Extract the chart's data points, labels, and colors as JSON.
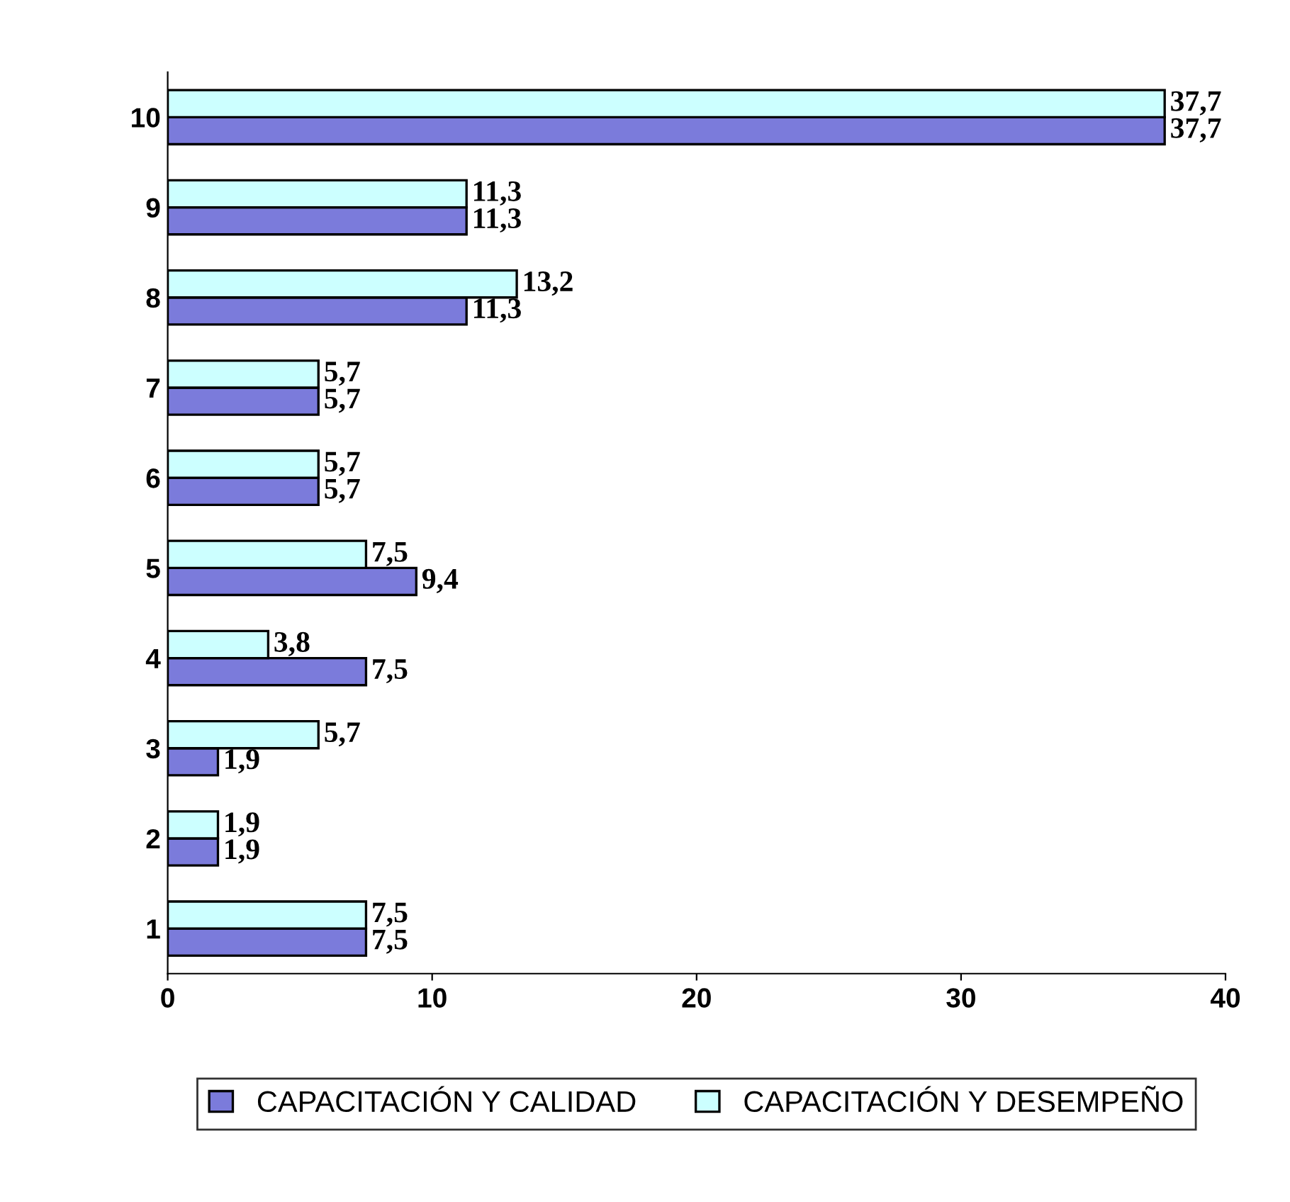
{
  "chart_data": {
    "type": "bar",
    "orientation": "horizontal",
    "categories": [
      "10",
      "9",
      "8",
      "7",
      "6",
      "5",
      "4",
      "3",
      "2",
      "1"
    ],
    "series": [
      {
        "name": "CAPACITACIÓN Y CALIDAD",
        "color": "#7b7bdb",
        "values": [
          37.7,
          11.3,
          11.3,
          5.7,
          5.7,
          9.4,
          7.5,
          1.9,
          1.9,
          7.5
        ],
        "value_labels": [
          "37,7",
          "11,3",
          "11,3",
          "5,7",
          "5,7",
          "9,4",
          "7,5",
          "1,9",
          "1,9",
          "7,5"
        ]
      },
      {
        "name": "CAPACITACIÓN Y DESEMPEÑO",
        "color": "#ccffff",
        "values": [
          37.7,
          11.3,
          13.2,
          5.7,
          5.7,
          7.5,
          3.8,
          5.7,
          1.9,
          7.5
        ],
        "value_labels": [
          "37,7",
          "11,3",
          "13,2",
          "5,7",
          "5,7",
          "7,5",
          "3,8",
          "5,7",
          "1,9",
          "7,5"
        ]
      }
    ],
    "xlim": [
      0,
      40
    ],
    "xticks": [
      0,
      10,
      20,
      30,
      40
    ],
    "grid": false,
    "legend": "bottom"
  }
}
